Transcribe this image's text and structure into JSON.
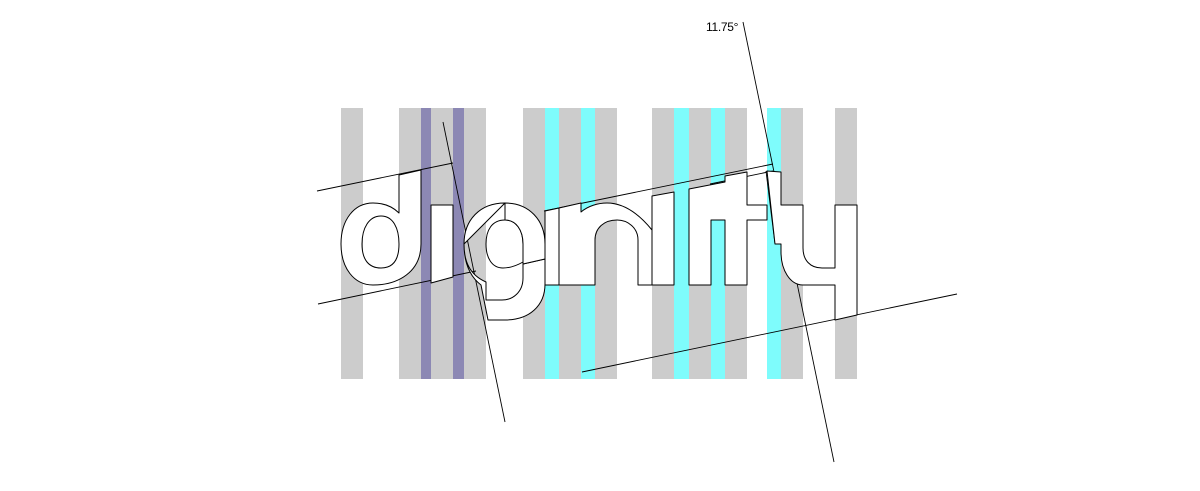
{
  "diagram": {
    "wordmark": "diginity",
    "angle_label": "11.75°",
    "colors": {
      "background": "#ffffff",
      "grey_column": "#cccccc",
      "purple_column": "#8c88b4",
      "cyan_column": "#7efcfc",
      "outline": "#000000"
    }
  }
}
